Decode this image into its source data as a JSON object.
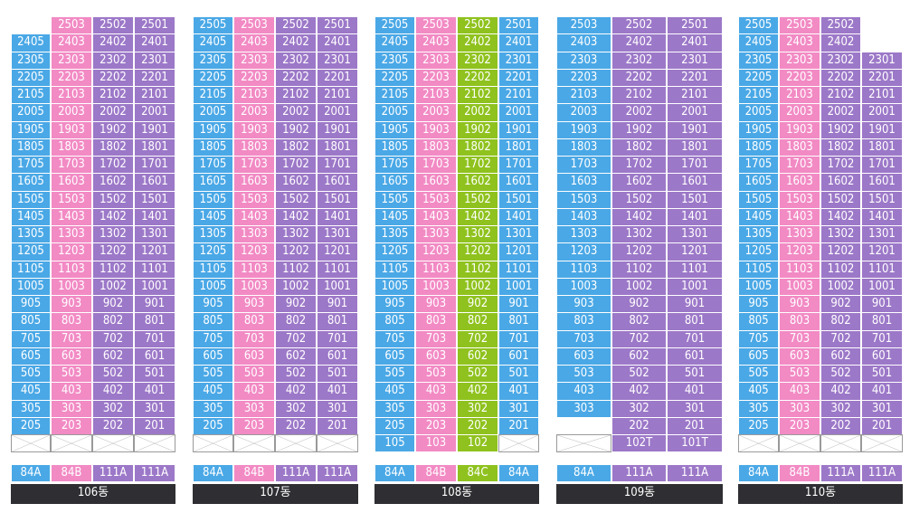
{
  "colors": {
    "blue": "#4aa8e6",
    "pink": "#f28ac4",
    "purple": "#9c78c8",
    "green": "#8fc21e",
    "name_bar": "#2f2f33"
  },
  "buildings": [
    {
      "name": "106동",
      "columns": [
        "blue",
        "pink",
        "purple",
        "purple"
      ],
      "suffixes": [
        "05",
        "03",
        "02",
        "01"
      ],
      "types": [
        "84A",
        "84B",
        "111A",
        "111A"
      ],
      "top_floors": [
        24,
        25,
        25,
        25
      ],
      "min_floor": 2,
      "pilotis": [
        "all"
      ],
      "extra_units": []
    },
    {
      "name": "107동",
      "columns": [
        "blue",
        "pink",
        "purple",
        "purple"
      ],
      "suffixes": [
        "05",
        "03",
        "02",
        "01"
      ],
      "types": [
        "84A",
        "84B",
        "111A",
        "111A"
      ],
      "top_floors": [
        25,
        25,
        25,
        25
      ],
      "min_floor": 2,
      "pilotis": [
        "all"
      ],
      "extra_units": []
    },
    {
      "name": "108동",
      "columns": [
        "blue",
        "pink",
        "green",
        "blue"
      ],
      "suffixes": [
        "05",
        "03",
        "02",
        "01"
      ],
      "types": [
        "84A",
        "84B",
        "84C",
        "84A"
      ],
      "top_floors": [
        25,
        25,
        25,
        25
      ],
      "min_floor": 2,
      "pilotis": [
        3
      ],
      "extra_units": [
        {
          "col": 0,
          "label": "105"
        },
        {
          "col": 1,
          "label": "103"
        },
        {
          "col": 2,
          "label": "102"
        }
      ]
    },
    {
      "name": "109동",
      "columns": [
        "blue",
        "purple",
        "purple"
      ],
      "suffixes": [
        "03",
        "02",
        "01"
      ],
      "types": [
        "84A",
        "111A",
        "111A"
      ],
      "top_floors": [
        25,
        25,
        25
      ],
      "min_floor": 2,
      "start_floor": [
        3,
        2,
        2
      ],
      "pilotis": [
        0
      ],
      "extra_units": [
        {
          "col": 1,
          "label": "102T"
        },
        {
          "col": 2,
          "label": "101T"
        }
      ]
    },
    {
      "name": "110동",
      "columns": [
        "blue",
        "pink",
        "purple",
        "purple"
      ],
      "suffixes": [
        "05",
        "03",
        "02",
        "01"
      ],
      "types": [
        "84A",
        "84B",
        "111A",
        "111A"
      ],
      "top_floors": [
        25,
        25,
        25,
        23
      ],
      "min_floor": 2,
      "pilotis": [
        "all"
      ],
      "extra_units": []
    }
  ]
}
